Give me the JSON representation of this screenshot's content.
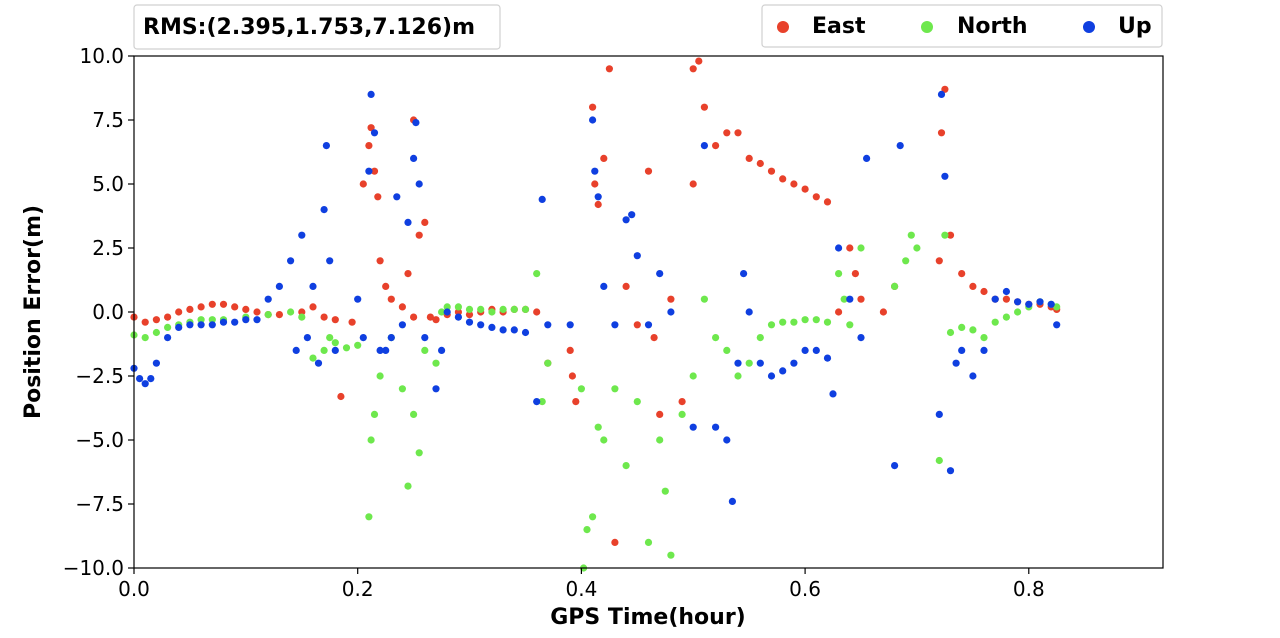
{
  "chart_data": {
    "type": "scatter",
    "title": "",
    "xlabel": "GPS Time(hour)",
    "ylabel": "Position Error(m)",
    "xlim": [
      0.0,
      0.92
    ],
    "ylim": [
      -10.0,
      10.0
    ],
    "xticks": [
      "0.0",
      "0.2",
      "0.4",
      "0.6",
      "0.8"
    ],
    "yticks": [
      "10.0",
      "7.5",
      "5.0",
      "2.5",
      "0.0",
      "−2.5",
      "−5.0",
      "−7.5",
      "−10.0"
    ],
    "grid": false,
    "legend_position": "top-right",
    "annotation": "RMS:(2.395,1.753,7.126)m",
    "series": [
      {
        "name": "East",
        "color": "#e8412b",
        "x": [
          0.0,
          0.01,
          0.02,
          0.03,
          0.04,
          0.05,
          0.06,
          0.07,
          0.08,
          0.09,
          0.1,
          0.11,
          0.12,
          0.13,
          0.15,
          0.16,
          0.17,
          0.18,
          0.185,
          0.195,
          0.205,
          0.21,
          0.212,
          0.215,
          0.218,
          0.22,
          0.225,
          0.23,
          0.24,
          0.245,
          0.25,
          0.25,
          0.255,
          0.26,
          0.265,
          0.27,
          0.28,
          0.29,
          0.3,
          0.31,
          0.32,
          0.33,
          0.34,
          0.35,
          0.36,
          0.37,
          0.39,
          0.392,
          0.395,
          0.41,
          0.412,
          0.415,
          0.42,
          0.425,
          0.43,
          0.44,
          0.45,
          0.46,
          0.465,
          0.47,
          0.48,
          0.49,
          0.5,
          0.5,
          0.505,
          0.51,
          0.52,
          0.53,
          0.54,
          0.55,
          0.56,
          0.57,
          0.58,
          0.59,
          0.6,
          0.61,
          0.62,
          0.63,
          0.64,
          0.645,
          0.65,
          0.67,
          0.68,
          0.72,
          0.722,
          0.725,
          0.73,
          0.74,
          0.75,
          0.76,
          0.77,
          0.78,
          0.79,
          0.8,
          0.81,
          0.82,
          0.825
        ],
        "y": [
          -0.2,
          -0.4,
          -0.3,
          -0.2,
          0.0,
          0.1,
          0.2,
          0.3,
          0.3,
          0.2,
          0.1,
          0.0,
          -0.1,
          -0.1,
          0.0,
          0.2,
          -0.2,
          -0.3,
          -3.3,
          -0.4,
          5.0,
          6.5,
          7.2,
          5.5,
          4.5,
          2.0,
          1.0,
          0.5,
          0.2,
          1.5,
          -0.2,
          7.5,
          3.0,
          3.5,
          -0.2,
          -0.3,
          -0.1,
          0.0,
          -0.1,
          0.0,
          0.1,
          0.0,
          0.1,
          0.1,
          0.0,
          -2.0,
          -1.5,
          -2.5,
          -3.5,
          8.0,
          5.0,
          4.2,
          6.0,
          9.5,
          -9.0,
          1.0,
          -0.5,
          5.5,
          -1.0,
          -4.0,
          0.5,
          -3.5,
          5.0,
          9.5,
          9.8,
          8.0,
          6.5,
          7.0,
          7.0,
          6.0,
          5.8,
          5.5,
          5.2,
          5.0,
          4.8,
          4.5,
          4.3,
          0.0,
          2.5,
          1.5,
          0.5,
          0.0,
          1.0,
          2.0,
          7.0,
          8.7,
          3.0,
          1.5,
          1.0,
          0.8,
          0.5,
          0.5,
          0.4,
          0.3,
          0.3,
          0.2,
          0.1
        ]
      },
      {
        "name": "North",
        "color": "#6ee84d",
        "x": [
          0.0,
          0.01,
          0.02,
          0.03,
          0.04,
          0.05,
          0.06,
          0.07,
          0.08,
          0.1,
          0.12,
          0.14,
          0.15,
          0.16,
          0.17,
          0.175,
          0.18,
          0.19,
          0.2,
          0.21,
          0.212,
          0.215,
          0.22,
          0.23,
          0.24,
          0.245,
          0.25,
          0.255,
          0.26,
          0.27,
          0.275,
          0.28,
          0.29,
          0.3,
          0.31,
          0.32,
          0.33,
          0.34,
          0.35,
          0.36,
          0.365,
          0.37,
          0.4,
          0.402,
          0.405,
          0.41,
          0.415,
          0.42,
          0.43,
          0.44,
          0.45,
          0.46,
          0.47,
          0.475,
          0.48,
          0.49,
          0.5,
          0.51,
          0.52,
          0.53,
          0.54,
          0.55,
          0.56,
          0.57,
          0.58,
          0.59,
          0.6,
          0.61,
          0.62,
          0.63,
          0.635,
          0.64,
          0.65,
          0.68,
          0.69,
          0.695,
          0.7,
          0.72,
          0.725,
          0.73,
          0.74,
          0.75,
          0.76,
          0.77,
          0.78,
          0.79,
          0.8,
          0.81,
          0.82,
          0.825
        ],
        "y": [
          -0.9,
          -1.0,
          -0.8,
          -0.6,
          -0.5,
          -0.4,
          -0.3,
          -0.3,
          -0.3,
          -0.2,
          -0.1,
          0.0,
          -0.2,
          -1.8,
          -1.5,
          -1.0,
          -1.2,
          -1.4,
          -1.3,
          -8.0,
          -5.0,
          -4.0,
          -2.5,
          -1.0,
          -3.0,
          -6.8,
          -4.0,
          -5.5,
          -1.5,
          -2.0,
          0.0,
          0.2,
          0.2,
          0.1,
          0.1,
          0.0,
          0.1,
          0.1,
          0.1,
          1.5,
          -3.5,
          -2.0,
          -3.0,
          -10.0,
          -8.5,
          -8.0,
          -4.5,
          -5.0,
          -3.0,
          -6.0,
          -3.5,
          -9.0,
          -5.0,
          -7.0,
          -9.5,
          -4.0,
          -2.5,
          0.5,
          -1.0,
          -1.5,
          -2.5,
          -2.0,
          -1.0,
          -0.5,
          -0.4,
          -0.4,
          -0.3,
          -0.3,
          -0.4,
          1.5,
          0.5,
          -0.5,
          2.5,
          1.0,
          2.0,
          3.0,
          2.5,
          -5.8,
          3.0,
          -0.8,
          -0.6,
          -0.7,
          -1.0,
          -0.4,
          -0.2,
          0.0,
          0.2,
          0.4,
          0.3,
          0.2
        ]
      },
      {
        "name": "Up",
        "color": "#0f3fe0",
        "x": [
          0.0,
          0.005,
          0.01,
          0.015,
          0.02,
          0.03,
          0.04,
          0.05,
          0.06,
          0.07,
          0.08,
          0.09,
          0.1,
          0.11,
          0.12,
          0.13,
          0.14,
          0.145,
          0.15,
          0.155,
          0.16,
          0.165,
          0.17,
          0.172,
          0.175,
          0.18,
          0.2,
          0.205,
          0.21,
          0.212,
          0.215,
          0.22,
          0.225,
          0.23,
          0.235,
          0.24,
          0.245,
          0.25,
          0.252,
          0.255,
          0.26,
          0.27,
          0.275,
          0.28,
          0.29,
          0.3,
          0.31,
          0.32,
          0.33,
          0.34,
          0.35,
          0.36,
          0.365,
          0.37,
          0.39,
          0.41,
          0.412,
          0.415,
          0.42,
          0.43,
          0.44,
          0.445,
          0.45,
          0.46,
          0.47,
          0.48,
          0.5,
          0.51,
          0.52,
          0.53,
          0.535,
          0.54,
          0.545,
          0.55,
          0.56,
          0.57,
          0.58,
          0.59,
          0.6,
          0.61,
          0.62,
          0.625,
          0.63,
          0.64,
          0.65,
          0.655,
          0.68,
          0.685,
          0.72,
          0.722,
          0.725,
          0.73,
          0.735,
          0.74,
          0.75,
          0.76,
          0.77,
          0.78,
          0.79,
          0.8,
          0.81,
          0.82,
          0.825
        ],
        "y": [
          -2.2,
          -2.6,
          -2.8,
          -2.6,
          -2.0,
          -1.0,
          -0.6,
          -0.5,
          -0.5,
          -0.5,
          -0.4,
          -0.4,
          -0.3,
          -0.3,
          0.5,
          1.0,
          2.0,
          -1.5,
          3.0,
          -1.0,
          1.0,
          -2.0,
          4.0,
          6.5,
          2.0,
          -1.5,
          0.5,
          -1.0,
          5.5,
          8.5,
          7.0,
          -1.5,
          -1.5,
          -1.0,
          4.5,
          -0.5,
          3.5,
          6.0,
          7.4,
          5.0,
          -1.0,
          -3.0,
          -1.5,
          0.0,
          -0.2,
          -0.4,
          -0.5,
          -0.6,
          -0.7,
          -0.7,
          -0.8,
          -3.5,
          4.4,
          -0.5,
          -0.5,
          7.5,
          5.5,
          4.5,
          1.0,
          -0.5,
          3.6,
          3.8,
          2.2,
          -0.5,
          1.5,
          0.0,
          -4.5,
          6.5,
          -4.5,
          -5.0,
          -7.4,
          -2.0,
          1.5,
          0.0,
          -2.0,
          -2.5,
          -2.3,
          -2.0,
          -1.5,
          -1.5,
          -1.8,
          -3.2,
          2.5,
          0.5,
          -1.0,
          6.0,
          -6.0,
          6.5,
          -4.0,
          8.5,
          5.3,
          -6.2,
          -2.0,
          -1.5,
          -2.5,
          -1.5,
          0.5,
          0.8,
          0.4,
          0.3,
          0.4,
          0.3,
          -0.5
        ]
      }
    ]
  }
}
